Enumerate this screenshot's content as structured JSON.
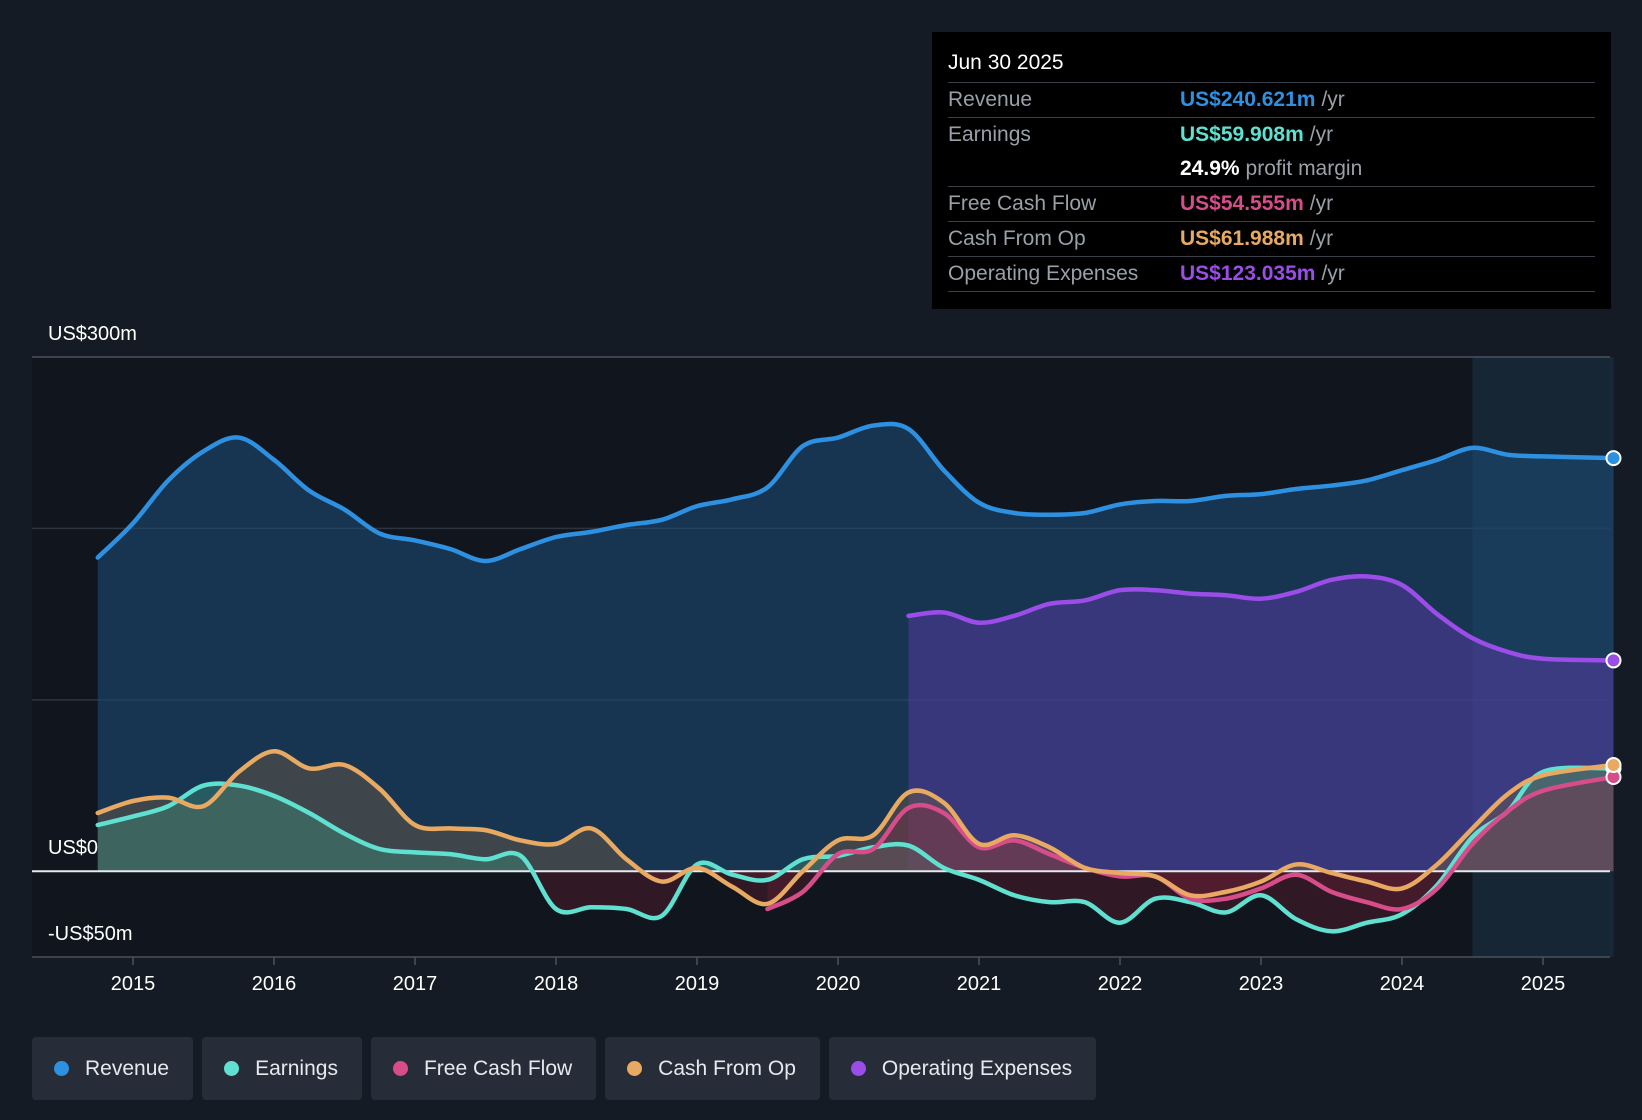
{
  "chart_data": {
    "type": "area",
    "ylim": [
      -50,
      300
    ],
    "y_axis_labels": {
      "top": "US$300m",
      "zero": "US$0",
      "bottom": "-US$50m"
    },
    "x_ticks": [
      "2015",
      "2016",
      "2017",
      "2018",
      "2019",
      "2020",
      "2021",
      "2022",
      "2023",
      "2024",
      "2025"
    ],
    "series": [
      {
        "name": "Revenue",
        "color": "#2e90e0",
        "points": [
          [
            2014.75,
            183
          ],
          [
            2015.0,
            203
          ],
          [
            2015.25,
            228
          ],
          [
            2015.5,
            245
          ],
          [
            2015.75,
            253
          ],
          [
            2016.0,
            240
          ],
          [
            2016.25,
            222
          ],
          [
            2016.5,
            211
          ],
          [
            2016.75,
            197
          ],
          [
            2017.0,
            193
          ],
          [
            2017.25,
            188
          ],
          [
            2017.5,
            181
          ],
          [
            2017.75,
            188
          ],
          [
            2018.0,
            195
          ],
          [
            2018.25,
            198
          ],
          [
            2018.5,
            202
          ],
          [
            2018.75,
            205
          ],
          [
            2019.0,
            213
          ],
          [
            2019.25,
            217
          ],
          [
            2019.5,
            224
          ],
          [
            2019.75,
            248
          ],
          [
            2020.0,
            253
          ],
          [
            2020.25,
            260
          ],
          [
            2020.5,
            258
          ],
          [
            2020.75,
            234
          ],
          [
            2021.0,
            215
          ],
          [
            2021.25,
            209
          ],
          [
            2021.5,
            208
          ],
          [
            2021.75,
            209
          ],
          [
            2022.0,
            214
          ],
          [
            2022.25,
            216
          ],
          [
            2022.5,
            216
          ],
          [
            2022.75,
            219
          ],
          [
            2023.0,
            220
          ],
          [
            2023.25,
            223
          ],
          [
            2023.5,
            225
          ],
          [
            2023.75,
            228
          ],
          [
            2024.0,
            234
          ],
          [
            2024.25,
            240
          ],
          [
            2024.5,
            247
          ],
          [
            2024.75,
            243
          ],
          [
            2025.0,
            242
          ],
          [
            2025.5,
            241
          ]
        ]
      },
      {
        "name": "Earnings",
        "color": "#5fe0d0",
        "points": [
          [
            2014.75,
            27
          ],
          [
            2015.0,
            32
          ],
          [
            2015.25,
            38
          ],
          [
            2015.5,
            50
          ],
          [
            2015.75,
            50
          ],
          [
            2016.0,
            44
          ],
          [
            2016.25,
            34
          ],
          [
            2016.5,
            22
          ],
          [
            2016.75,
            13
          ],
          [
            2017.0,
            11
          ],
          [
            2017.25,
            10
          ],
          [
            2017.5,
            7
          ],
          [
            2017.75,
            9
          ],
          [
            2018.0,
            -22
          ],
          [
            2018.25,
            -21
          ],
          [
            2018.5,
            -22
          ],
          [
            2018.75,
            -26
          ],
          [
            2019.0,
            4
          ],
          [
            2019.25,
            -2
          ],
          [
            2019.5,
            -5
          ],
          [
            2019.75,
            7
          ],
          [
            2020.0,
            9
          ],
          [
            2020.25,
            14
          ],
          [
            2020.5,
            15
          ],
          [
            2020.75,
            2
          ],
          [
            2021.0,
            -5
          ],
          [
            2021.25,
            -14
          ],
          [
            2021.5,
            -18
          ],
          [
            2021.75,
            -18
          ],
          [
            2022.0,
            -30
          ],
          [
            2022.25,
            -16
          ],
          [
            2022.5,
            -18
          ],
          [
            2022.75,
            -24
          ],
          [
            2023.0,
            -14
          ],
          [
            2023.25,
            -28
          ],
          [
            2023.5,
            -35
          ],
          [
            2023.75,
            -30
          ],
          [
            2024.0,
            -25
          ],
          [
            2024.25,
            -8
          ],
          [
            2024.5,
            20
          ],
          [
            2024.75,
            35
          ],
          [
            2025.0,
            58
          ],
          [
            2025.5,
            60
          ]
        ]
      },
      {
        "name": "Free Cash Flow",
        "color": "#d64d8a",
        "points": [
          [
            2019.5,
            -22
          ],
          [
            2019.75,
            -12
          ],
          [
            2020.0,
            10
          ],
          [
            2020.25,
            13
          ],
          [
            2020.5,
            37
          ],
          [
            2020.75,
            34
          ],
          [
            2021.0,
            14
          ],
          [
            2021.25,
            18
          ],
          [
            2021.5,
            10
          ],
          [
            2021.75,
            2
          ],
          [
            2022.0,
            -3
          ],
          [
            2022.25,
            -3
          ],
          [
            2022.5,
            -16
          ],
          [
            2022.75,
            -16
          ],
          [
            2023.0,
            -10
          ],
          [
            2023.25,
            -2
          ],
          [
            2023.5,
            -12
          ],
          [
            2023.75,
            -18
          ],
          [
            2024.0,
            -22
          ],
          [
            2024.25,
            -10
          ],
          [
            2024.5,
            16
          ],
          [
            2024.75,
            35
          ],
          [
            2025.0,
            47
          ],
          [
            2025.5,
            55
          ]
        ]
      },
      {
        "name": "Cash From Op",
        "color": "#e8a963",
        "points": [
          [
            2014.75,
            34
          ],
          [
            2015.0,
            41
          ],
          [
            2015.25,
            43
          ],
          [
            2015.5,
            38
          ],
          [
            2015.75,
            58
          ],
          [
            2016.0,
            70
          ],
          [
            2016.25,
            60
          ],
          [
            2016.5,
            62
          ],
          [
            2016.75,
            48
          ],
          [
            2017.0,
            27
          ],
          [
            2017.25,
            25
          ],
          [
            2017.5,
            24
          ],
          [
            2017.75,
            18
          ],
          [
            2018.0,
            16
          ],
          [
            2018.25,
            25
          ],
          [
            2018.5,
            7
          ],
          [
            2018.75,
            -6
          ],
          [
            2019.0,
            2
          ],
          [
            2019.25,
            -9
          ],
          [
            2019.5,
            -19
          ],
          [
            2019.75,
            0
          ],
          [
            2020.0,
            18
          ],
          [
            2020.25,
            21
          ],
          [
            2020.5,
            46
          ],
          [
            2020.75,
            40
          ],
          [
            2021.0,
            16
          ],
          [
            2021.25,
            21
          ],
          [
            2021.5,
            14
          ],
          [
            2021.75,
            2
          ],
          [
            2022.0,
            -1
          ],
          [
            2022.25,
            -3
          ],
          [
            2022.5,
            -14
          ],
          [
            2022.75,
            -12
          ],
          [
            2023.0,
            -6
          ],
          [
            2023.25,
            4
          ],
          [
            2023.5,
            -1
          ],
          [
            2023.75,
            -6
          ],
          [
            2024.0,
            -10
          ],
          [
            2024.25,
            4
          ],
          [
            2024.5,
            25
          ],
          [
            2024.75,
            45
          ],
          [
            2025.0,
            56
          ],
          [
            2025.5,
            62
          ]
        ]
      },
      {
        "name": "Operating Expenses",
        "color": "#9b4de8",
        "points": [
          [
            2020.5,
            149
          ],
          [
            2020.75,
            151
          ],
          [
            2021.0,
            145
          ],
          [
            2021.25,
            149
          ],
          [
            2021.5,
            156
          ],
          [
            2021.75,
            158
          ],
          [
            2022.0,
            164
          ],
          [
            2022.25,
            164
          ],
          [
            2022.5,
            162
          ],
          [
            2022.75,
            161
          ],
          [
            2023.0,
            159
          ],
          [
            2023.25,
            163
          ],
          [
            2023.5,
            170
          ],
          [
            2023.75,
            172
          ],
          [
            2024.0,
            167
          ],
          [
            2024.25,
            150
          ],
          [
            2024.5,
            136
          ],
          [
            2024.75,
            128
          ],
          [
            2025.0,
            124
          ],
          [
            2025.5,
            123
          ]
        ]
      }
    ]
  },
  "tooltip": {
    "date": "Jun 30 2025",
    "rows": [
      {
        "label": "Revenue",
        "value": "US$240.621m",
        "unit": "/yr",
        "color": "#2e90e0"
      },
      {
        "label": "Earnings",
        "value": "US$59.908m",
        "unit": "/yr",
        "color": "#5fe0d0"
      },
      {
        "label": "",
        "value": "24.9%",
        "unit": "profit margin",
        "color": "#ffffff"
      },
      {
        "label": "Free Cash Flow",
        "value": "US$54.555m",
        "unit": "/yr",
        "color": "#d64d8a"
      },
      {
        "label": "Cash From Op",
        "value": "US$61.988m",
        "unit": "/yr",
        "color": "#e8a963"
      },
      {
        "label": "Operating Expenses",
        "value": "US$123.035m",
        "unit": "/yr",
        "color": "#9b4de8"
      }
    ]
  },
  "legend": [
    {
      "label": "Revenue",
      "color": "#2e90e0"
    },
    {
      "label": "Earnings",
      "color": "#5fe0d0"
    },
    {
      "label": "Free Cash Flow",
      "color": "#d64d8a"
    },
    {
      "label": "Cash From Op",
      "color": "#e8a963"
    },
    {
      "label": "Operating Expenses",
      "color": "#9b4de8"
    }
  ]
}
